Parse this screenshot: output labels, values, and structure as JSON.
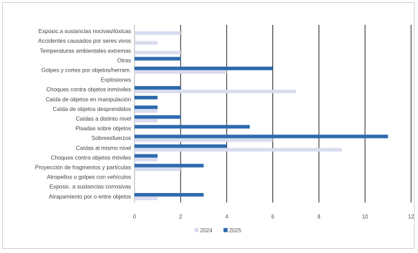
{
  "chart_data": {
    "type": "bar",
    "orientation": "horizontal",
    "categories": [
      "Exposic.a sustancias nocivas/tóxicas",
      "Accidentes causados por seres vivos",
      "Temperaturas ambientales extremas",
      "Otras",
      "Golpes y cortes  por objetos/herram.",
      "Explosiones",
      "Choques contra objetos inmóviles",
      "Caída de objetos en manipulación",
      "Caída de objetos desprendidos",
      "Caídas a distinto nivel",
      "Pisadas sobre objetos",
      "Sobreesfuerzos",
      "Caídas al mismo nivel",
      "Choques contra objetos móviles",
      "Proyección de fragmentos y partículas",
      "Atropellos o golpes con vehículos",
      "Exposic. a sustancias corrosivas",
      "Atrapamiento por o entre objetos"
    ],
    "series": [
      {
        "name": "2024",
        "color": "#d9dcef",
        "values": [
          2,
          1,
          2,
          0,
          4,
          0,
          7,
          0,
          1,
          1,
          0,
          6,
          9,
          1,
          2,
          0,
          0,
          1
        ]
      },
      {
        "name": "2025",
        "color": "#2e6bad",
        "values": [
          0,
          0,
          0,
          2,
          6,
          0,
          2,
          1,
          1,
          2,
          5,
          11,
          4,
          1,
          3,
          0,
          0,
          3
        ]
      }
    ],
    "xlim": [
      0,
      12
    ],
    "xticks": [
      "0",
      "2",
      "4",
      "6",
      "8",
      "10",
      "12"
    ],
    "grid": "vertical",
    "legend_position": "bottom"
  }
}
